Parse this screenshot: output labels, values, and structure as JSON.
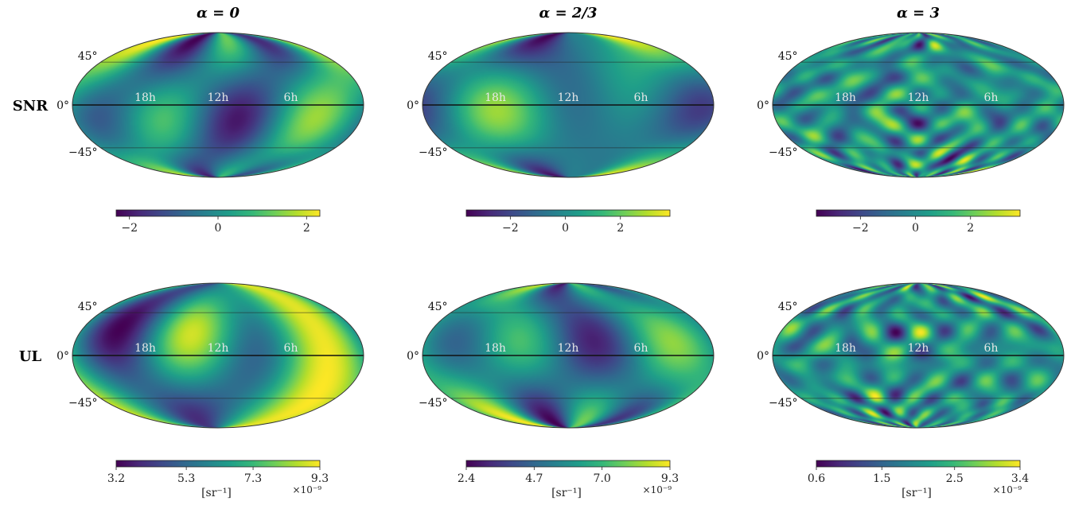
{
  "chart_data": [
    {
      "type": "heatmap",
      "projection": "mollweide",
      "title": "α = 0",
      "row_label": "SNR",
      "lat_labels": [
        "45°",
        "0°",
        "−45°"
      ],
      "ra_labels": [
        "18h",
        "12h",
        "6h"
      ],
      "colormap": "viridis",
      "colorbar": {
        "range": [
          -2.3,
          2.3
        ],
        "ticks": [
          -2,
          0,
          2
        ],
        "tick_labels": [
          "−2",
          "0",
          "2"
        ],
        "unit": "",
        "scale": ""
      },
      "seed": 1,
      "complexity": "low"
    },
    {
      "type": "heatmap",
      "projection": "mollweide",
      "title": "α = 2/3",
      "row_label": "SNR",
      "lat_labels": [
        "45°",
        "0°",
        "−45°"
      ],
      "ra_labels": [
        "18h",
        "12h",
        "6h"
      ],
      "colormap": "viridis",
      "colorbar": {
        "range": [
          -3.6,
          3.8
        ],
        "ticks": [
          -2,
          0,
          2
        ],
        "tick_labels": [
          "−2",
          "0",
          "2"
        ],
        "unit": "",
        "scale": ""
      },
      "seed": 2,
      "complexity": "low"
    },
    {
      "type": "heatmap",
      "projection": "mollweide",
      "title": "α = 3",
      "row_label": "SNR",
      "lat_labels": [
        "45°",
        "0°",
        "−45°"
      ],
      "ra_labels": [
        "18h",
        "12h",
        "6h"
      ],
      "colormap": "viridis",
      "colorbar": {
        "range": [
          -3.6,
          3.8
        ],
        "ticks": [
          -2,
          0,
          2
        ],
        "tick_labels": [
          "−2",
          "0",
          "2"
        ],
        "unit": "",
        "scale": ""
      },
      "seed": 3,
      "complexity": "high"
    },
    {
      "type": "heatmap",
      "projection": "mollweide",
      "title": "α = 0",
      "row_label": "UL",
      "lat_labels": [
        "45°",
        "0°",
        "−45°"
      ],
      "ra_labels": [
        "18h",
        "12h",
        "6h"
      ],
      "colormap": "viridis",
      "colorbar": {
        "range": [
          3.2,
          9.3
        ],
        "ticks": [
          3.2,
          5.3,
          7.3,
          9.3
        ],
        "tick_labels": [
          "3.2",
          "5.3",
          "7.3",
          "9.3"
        ],
        "unit": "[sr⁻¹]",
        "scale": "×10⁻⁹"
      },
      "seed": 4,
      "complexity": "low"
    },
    {
      "type": "heatmap",
      "projection": "mollweide",
      "title": "α = 2/3",
      "row_label": "UL",
      "lat_labels": [
        "45°",
        "0°",
        "−45°"
      ],
      "ra_labels": [
        "18h",
        "12h",
        "6h"
      ],
      "colormap": "viridis",
      "colorbar": {
        "range": [
          2.4,
          9.3
        ],
        "ticks": [
          2.4,
          4.7,
          7.0,
          9.3
        ],
        "tick_labels": [
          "2.4",
          "4.7",
          "7.0",
          "9.3"
        ],
        "unit": "[sr⁻¹]",
        "scale": "×10⁻⁹"
      },
      "seed": 5,
      "complexity": "low"
    },
    {
      "type": "heatmap",
      "projection": "mollweide",
      "title": "α = 3",
      "row_label": "UL",
      "lat_labels": [
        "45°",
        "0°",
        "−45°"
      ],
      "ra_labels": [
        "18h",
        "12h",
        "6h"
      ],
      "colormap": "viridis",
      "colorbar": {
        "range": [
          0.6,
          3.4
        ],
        "ticks": [
          0.6,
          1.5,
          2.5,
          3.4
        ],
        "tick_labels": [
          "0.6",
          "1.5",
          "2.5",
          "3.4"
        ],
        "unit": "[sr⁻¹]",
        "scale": "×10⁻⁹"
      },
      "seed": 6,
      "complexity": "high"
    }
  ]
}
